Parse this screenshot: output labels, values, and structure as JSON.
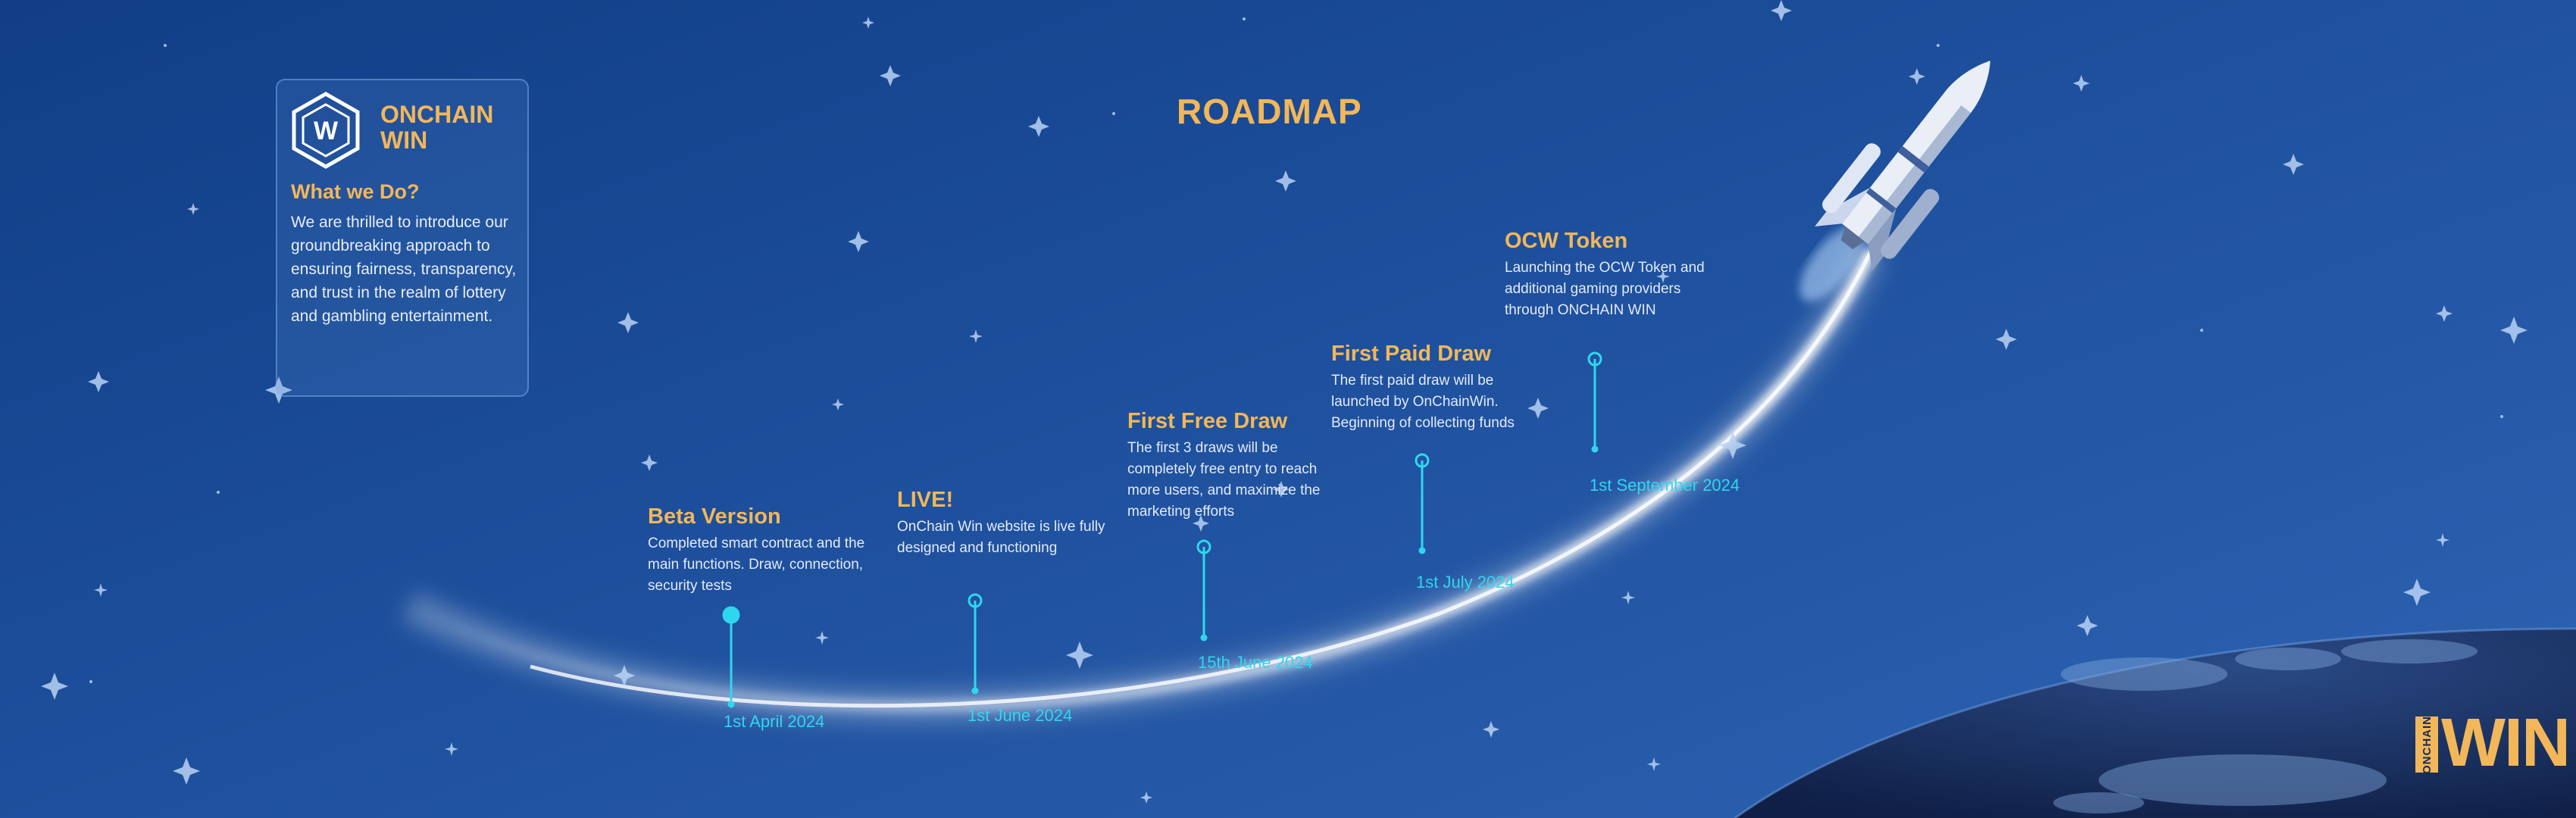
{
  "page": {
    "title": "ROADMAP"
  },
  "info_card": {
    "brand_line1": "ONCHAIN",
    "brand_line2": "WIN",
    "logo_letter": "W",
    "heading": "What we Do?",
    "body": "We are thrilled to introduce our groundbreaking approach to ensuring fairness, transparency, and trust in the realm of lottery and gambling entertainment."
  },
  "milestones": [
    {
      "title": "Beta Version",
      "description": "Completed smart contract and the main functions. Draw, connection, security tests",
      "date": "1st April 2024"
    },
    {
      "title": "LIVE!",
      "description": "OnChain Win website is live fully designed and functioning",
      "date": "1st June 2024"
    },
    {
      "title": "First Free Draw",
      "description": "The first 3 draws will be completely free entry to reach more users, and maximize the marketing efforts",
      "date": "15th June 2024"
    },
    {
      "title": "First Paid Draw",
      "description": "The first paid draw will be launched by OnChainWin. Beginning of collecting funds",
      "date": "1st July 2024"
    },
    {
      "title": "OCW Token",
      "description": "Launching the OCW Token and additional gaming providers through ONCHAIN WIN",
      "date": "1st September 2024"
    }
  ],
  "corner_logo": {
    "small": "ONCHAIN",
    "big": "WIN"
  },
  "colors": {
    "accent": "#f2b759",
    "date": "#2fd7ee",
    "background": "#1a4a96"
  },
  "icons": [
    "rocket-icon",
    "planet-icon",
    "hexagon-logo-icon",
    "star-icon"
  ]
}
